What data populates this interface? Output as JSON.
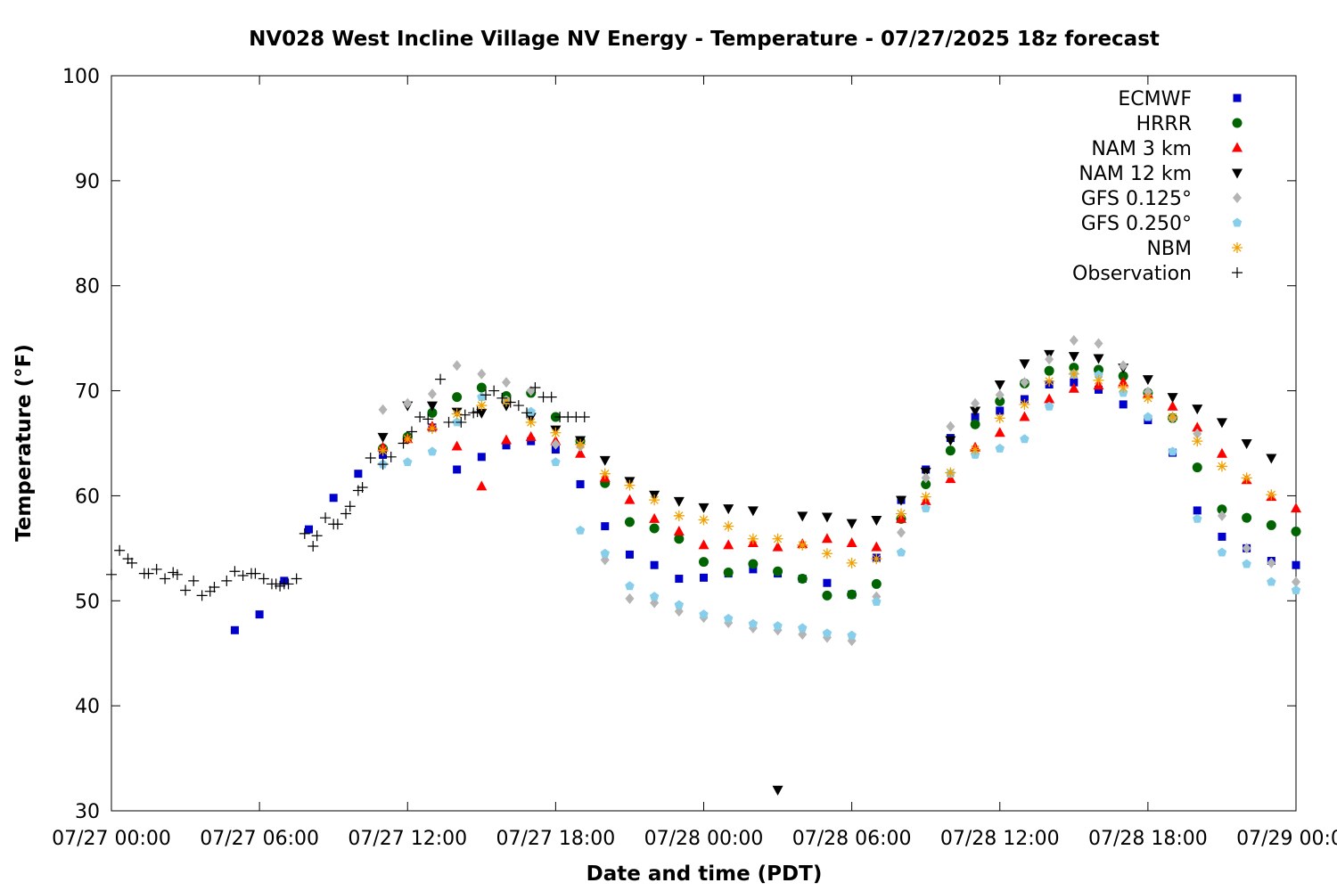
{
  "chart_data": {
    "type": "scatter",
    "title": "NV028 West Incline Village NV Energy - Temperature - 07/27/2025 18z forecast",
    "xlabel": "Date and time (PDT)",
    "ylabel": "Temperature (°F)",
    "x_unit": "hours since 07/27 00:00 PDT",
    "xlim": [
      0,
      48
    ],
    "ylim": [
      30,
      100
    ],
    "x_ticks": [
      0,
      6,
      12,
      18,
      24,
      30,
      36,
      42,
      48
    ],
    "x_tick_labels": [
      "07/27 00:00",
      "07/27 06:00",
      "07/27 12:00",
      "07/27 18:00",
      "07/28 00:00",
      "07/28 06:00",
      "07/28 12:00",
      "07/28 18:00",
      "07/29 00:00"
    ],
    "y_ticks": [
      30,
      40,
      50,
      60,
      70,
      80,
      90,
      100
    ],
    "grid": false,
    "legend_position": "top-right",
    "series": [
      {
        "name": "ECMWF",
        "marker": "square",
        "color": "#0000cc",
        "x": [
          5,
          6,
          7,
          8,
          9,
          10,
          11,
          12,
          13,
          14,
          15,
          16,
          17,
          18,
          19,
          20,
          21,
          22,
          23,
          24,
          25,
          26,
          27,
          28,
          29,
          30,
          31,
          32,
          33,
          34,
          35,
          36,
          37,
          38,
          39,
          40,
          41,
          42,
          43,
          44,
          45,
          46,
          47,
          48
        ],
        "y": [
          47.2,
          48.7,
          51.9,
          56.8,
          59.8,
          62.1,
          63.9,
          65.5,
          66.5,
          62.5,
          63.7,
          64.8,
          65.2,
          64.4,
          61.1,
          57.1,
          54.4,
          53.4,
          52.1,
          52.2,
          52.6,
          53.0,
          52.6,
          52.1,
          51.7,
          50.6,
          54.1,
          59.6,
          62.5,
          65.5,
          67.5,
          68.1,
          69.2,
          70.6,
          70.8,
          70.1,
          68.7,
          67.2,
          64.1,
          58.6,
          56.1,
          55.0,
          53.8,
          53.4
        ]
      },
      {
        "name": "HRRR",
        "marker": "circle",
        "color": "#006400",
        "x": [
          11,
          12,
          13,
          14,
          15,
          16,
          17,
          18,
          19,
          20,
          21,
          22,
          23,
          24,
          25,
          26,
          27,
          28,
          29,
          30,
          31,
          32,
          33,
          34,
          35,
          36,
          37,
          38,
          39,
          40,
          41,
          42,
          43,
          44,
          45,
          46,
          47,
          48
        ],
        "y": [
          64.5,
          65.6,
          67.9,
          69.4,
          70.3,
          69.5,
          69.8,
          67.5,
          65.2,
          61.2,
          57.5,
          56.9,
          55.9,
          53.7,
          52.7,
          53.5,
          52.8,
          52.1,
          50.5,
          50.6,
          51.6,
          57.8,
          61.1,
          64.3,
          66.8,
          69.0,
          70.7,
          71.9,
          72.2,
          72.0,
          71.4,
          69.8,
          67.4,
          62.7,
          58.7,
          57.9,
          57.2,
          56.6
        ]
      },
      {
        "name": "NAM 3 km",
        "marker": "triangle-up",
        "color": "#ff0000",
        "x": [
          11,
          12,
          13,
          14,
          15,
          16,
          17,
          18,
          19,
          20,
          21,
          22,
          23,
          24,
          25,
          26,
          27,
          28,
          29,
          30,
          31,
          32,
          33,
          34,
          35,
          36,
          37,
          38,
          39,
          40,
          41,
          42,
          43,
          44,
          45,
          46,
          47,
          48
        ],
        "y": [
          64.6,
          65.4,
          66.6,
          64.7,
          60.9,
          65.3,
          65.6,
          65.2,
          64.0,
          61.7,
          59.6,
          57.8,
          56.6,
          55.3,
          55.3,
          55.5,
          55.1,
          55.4,
          55.9,
          55.5,
          55.1,
          57.8,
          59.5,
          61.6,
          64.6,
          66.0,
          67.5,
          69.2,
          70.2,
          70.5,
          70.8,
          69.7,
          68.5,
          66.5,
          64.0,
          61.5,
          59.9,
          58.8
        ]
      },
      {
        "name": "NAM 12 km",
        "marker": "triangle-down",
        "color": "#000000",
        "x": [
          11,
          12,
          13,
          14,
          15,
          16,
          17,
          18,
          19,
          20,
          21,
          22,
          23,
          24,
          25,
          26,
          27,
          28,
          29,
          30,
          31,
          32,
          33,
          34,
          35,
          36,
          37,
          38,
          39,
          40,
          41,
          42,
          43,
          44,
          45,
          46,
          47
        ],
        "y": [
          65.6,
          68.6,
          68.6,
          68.0,
          67.9,
          68.6,
          67.5,
          66.3,
          65.3,
          63.4,
          61.4,
          60.1,
          59.5,
          58.9,
          58.8,
          58.6,
          32.0,
          58.1,
          58.0,
          57.4,
          57.7,
          59.6,
          62.3,
          65.3,
          68.1,
          70.6,
          72.6,
          73.5,
          73.3,
          73.1,
          72.2,
          71.1,
          69.4,
          68.3,
          67.0,
          65.0,
          63.6
        ]
      },
      {
        "name": "GFS 0.125°",
        "marker": "diamond",
        "color": "#b4b4b4",
        "x": [
          11,
          12,
          13,
          14,
          15,
          16,
          17,
          18,
          19,
          20,
          21,
          22,
          23,
          24,
          25,
          26,
          27,
          28,
          29,
          30,
          31,
          32,
          33,
          34,
          35,
          36,
          37,
          38,
          39,
          40,
          41,
          42,
          43,
          44,
          45,
          46,
          47,
          48
        ],
        "y": [
          68.2,
          68.8,
          69.7,
          72.4,
          71.6,
          70.8,
          70.0,
          64.9,
          64.7,
          53.9,
          50.2,
          49.8,
          49.0,
          48.4,
          47.9,
          47.4,
          47.2,
          46.8,
          46.5,
          46.2,
          50.4,
          56.5,
          61.7,
          66.6,
          68.8,
          69.6,
          70.8,
          73.0,
          74.8,
          74.5,
          72.4,
          69.9,
          67.4,
          65.9,
          58.1,
          55.0,
          53.6,
          51.8
        ]
      },
      {
        "name": "GFS 0.250°",
        "marker": "pentagon",
        "color": "#87ceeb",
        "x": [
          11,
          12,
          13,
          14,
          15,
          16,
          17,
          18,
          19,
          20,
          21,
          22,
          23,
          24,
          25,
          26,
          27,
          28,
          29,
          30,
          31,
          32,
          33,
          34,
          35,
          36,
          37,
          38,
          39,
          40,
          41,
          42,
          43,
          44,
          45,
          46,
          47,
          48
        ],
        "y": [
          63.0,
          63.2,
          64.2,
          67.0,
          69.4,
          69.1,
          68.0,
          63.2,
          56.7,
          54.5,
          51.4,
          50.4,
          49.6,
          48.7,
          48.3,
          47.8,
          47.6,
          47.4,
          46.9,
          46.7,
          49.9,
          54.6,
          58.8,
          62.1,
          63.9,
          64.5,
          65.4,
          68.5,
          71.6,
          71.5,
          69.8,
          67.5,
          64.2,
          57.8,
          54.6,
          53.5,
          51.8,
          51.0
        ]
      },
      {
        "name": "NBM",
        "marker": "star",
        "color": "#f0a000",
        "x": [
          11,
          12,
          13,
          14,
          15,
          16,
          17,
          18,
          19,
          20,
          21,
          22,
          23,
          24,
          25,
          26,
          27,
          28,
          29,
          30,
          31,
          32,
          33,
          34,
          35,
          36,
          37,
          38,
          39,
          40,
          41,
          42,
          43,
          44,
          45,
          46,
          47
        ],
        "y": [
          64.3,
          65.4,
          66.4,
          67.8,
          68.6,
          69.0,
          67.0,
          66.0,
          64.9,
          62.1,
          61.0,
          59.6,
          58.1,
          57.7,
          57.1,
          55.9,
          55.9,
          55.3,
          54.5,
          53.6,
          54.0,
          58.3,
          59.9,
          62.2,
          64.4,
          67.4,
          68.7,
          70.9,
          71.6,
          71.0,
          70.3,
          69.3,
          67.5,
          65.2,
          62.8,
          61.7,
          60.1
        ]
      },
      {
        "name": "Observation",
        "marker": "plus",
        "color": "#000000",
        "x": [
          0,
          0.33,
          0.67,
          0.83,
          1.33,
          1.5,
          1.83,
          2.17,
          2.5,
          2.67,
          3.0,
          3.33,
          3.67,
          4.0,
          4.17,
          4.67,
          5.0,
          5.33,
          5.67,
          5.83,
          6.17,
          6.5,
          6.67,
          6.83,
          7.0,
          7.17,
          7.5,
          7.83,
          8.17,
          8.33,
          8.67,
          9.0,
          9.17,
          9.5,
          9.67,
          10.0,
          10.17,
          10.5,
          11.0,
          11.33,
          11.83,
          12.17,
          12.5,
          12.83,
          13.33,
          13.67,
          14.17,
          14.33,
          14.67,
          14.83,
          15.17,
          15.5,
          15.83,
          16.17,
          16.5,
          16.83,
          17.17,
          17.5,
          17.83,
          18.17,
          18.5,
          18.83,
          19.17
        ],
        "y": [
          52.5,
          54.8,
          54.0,
          53.6,
          52.6,
          52.6,
          53.0,
          52.1,
          52.7,
          52.5,
          51.0,
          51.9,
          50.5,
          50.9,
          51.3,
          51.9,
          52.8,
          52.4,
          52.6,
          52.6,
          52.1,
          51.6,
          51.6,
          51.4,
          51.6,
          51.6,
          52.1,
          56.4,
          55.2,
          56.2,
          57.9,
          57.3,
          57.3,
          58.3,
          59.0,
          60.5,
          60.8,
          63.6,
          63.0,
          63.7,
          65.0,
          66.1,
          67.5,
          67.3,
          71.1,
          67.0,
          67.0,
          67.7,
          67.9,
          68.0,
          69.6,
          70.0,
          69.3,
          68.9,
          68.6,
          67.9,
          70.3,
          69.4,
          69.4,
          67.5,
          67.5,
          67.5,
          67.5
        ]
      }
    ]
  }
}
